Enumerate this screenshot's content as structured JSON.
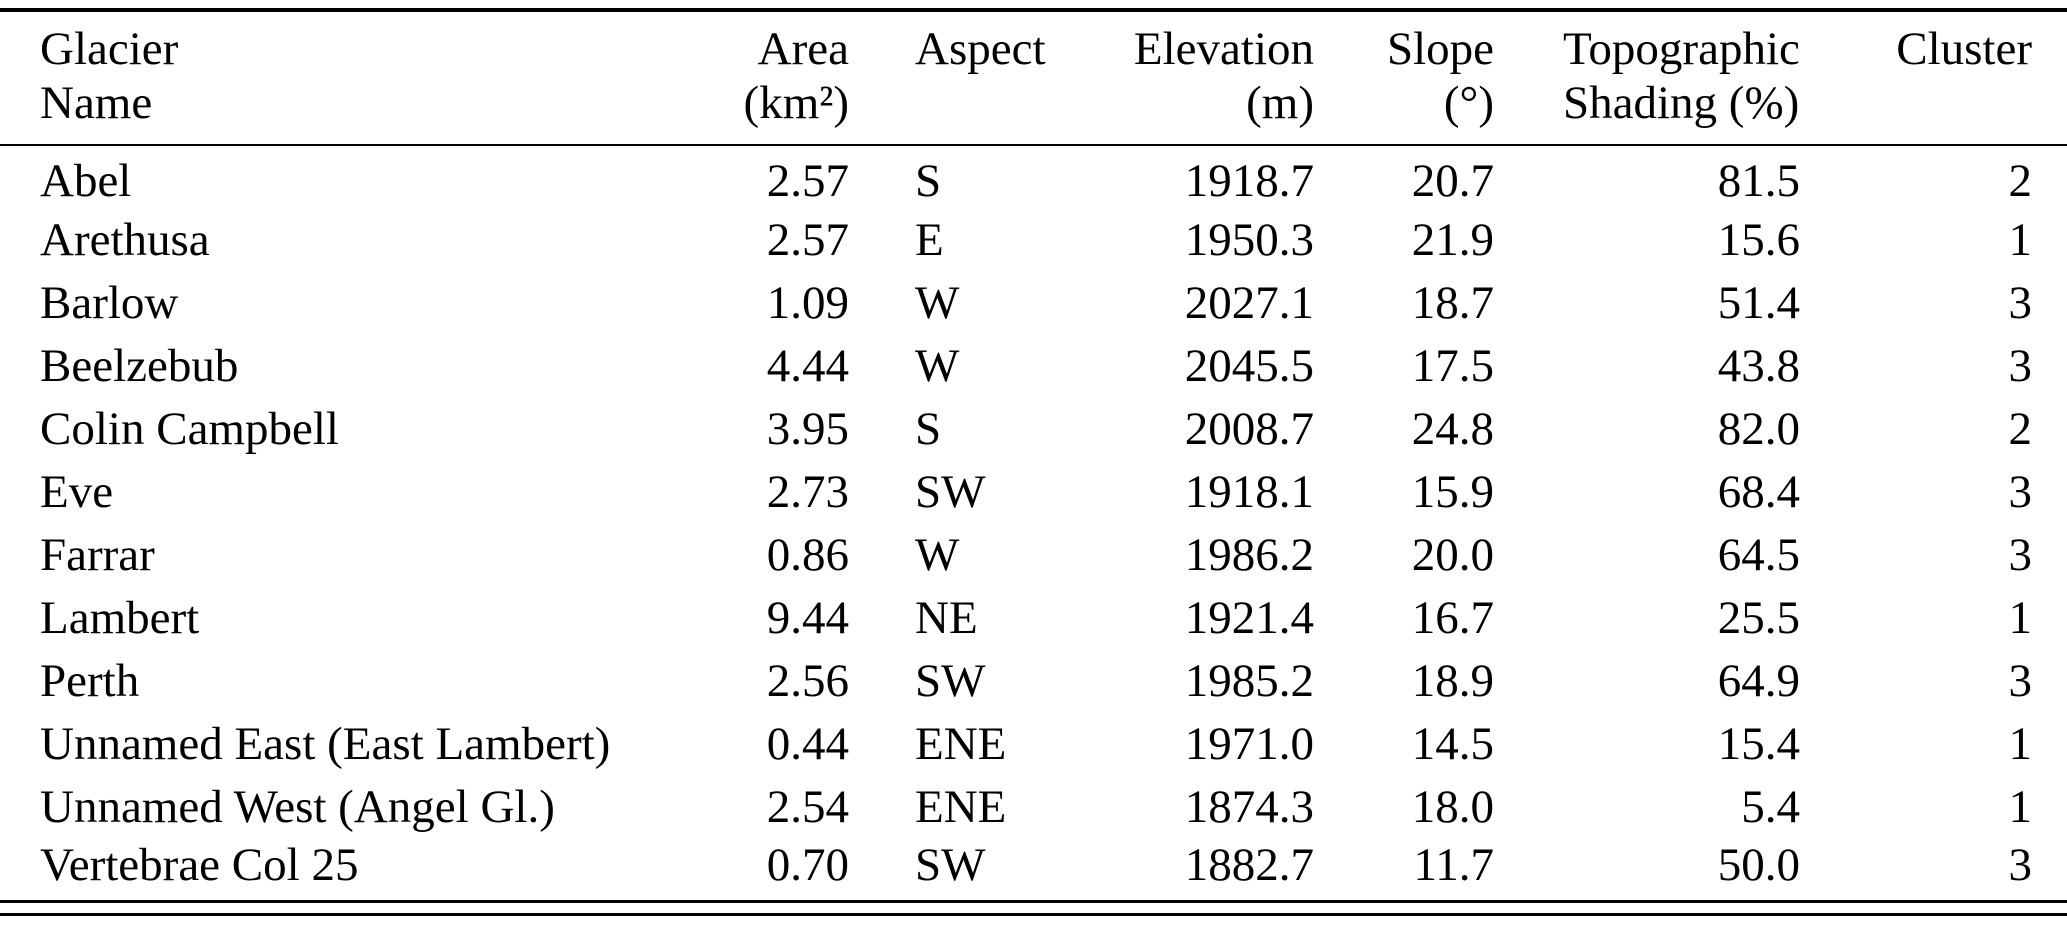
{
  "table": {
    "headers": [
      {
        "line1": "Glacier",
        "line2": "Name"
      },
      {
        "line1": "Area",
        "line2": "(km²)"
      },
      {
        "line1": "Aspect",
        "line2": ""
      },
      {
        "line1": "Elevation",
        "line2": "(m)"
      },
      {
        "line1": "Slope",
        "line2": "(°)"
      },
      {
        "line1": "Topographic",
        "line2": "Shading (%)"
      },
      {
        "line1": "Cluster",
        "line2": ""
      }
    ],
    "rows": [
      {
        "name": "Abel",
        "area": "2.57",
        "aspect": "S",
        "elevation": "1918.7",
        "slope": "20.7",
        "shading": "81.5",
        "cluster": "2"
      },
      {
        "name": "Arethusa",
        "area": "2.57",
        "aspect": "E",
        "elevation": "1950.3",
        "slope": "21.9",
        "shading": "15.6",
        "cluster": "1"
      },
      {
        "name": "Barlow",
        "area": "1.09",
        "aspect": "W",
        "elevation": "2027.1",
        "slope": "18.7",
        "shading": "51.4",
        "cluster": "3"
      },
      {
        "name": "Beelzebub",
        "area": "4.44",
        "aspect": "W",
        "elevation": "2045.5",
        "slope": "17.5",
        "shading": "43.8",
        "cluster": "3"
      },
      {
        "name": "Colin Campbell",
        "area": "3.95",
        "aspect": "S",
        "elevation": "2008.7",
        "slope": "24.8",
        "shading": "82.0",
        "cluster": "2"
      },
      {
        "name": "Eve",
        "area": "2.73",
        "aspect": "SW",
        "elevation": "1918.1",
        "slope": "15.9",
        "shading": "68.4",
        "cluster": "3"
      },
      {
        "name": "Farrar",
        "area": "0.86",
        "aspect": "W",
        "elevation": "1986.2",
        "slope": "20.0",
        "shading": "64.5",
        "cluster": "3"
      },
      {
        "name": "Lambert",
        "area": "9.44",
        "aspect": "NE",
        "elevation": "1921.4",
        "slope": "16.7",
        "shading": "25.5",
        "cluster": "1"
      },
      {
        "name": "Perth",
        "area": "2.56",
        "aspect": "SW",
        "elevation": "1985.2",
        "slope": "18.9",
        "shading": "64.9",
        "cluster": "3"
      },
      {
        "name": "Unnamed East (East Lambert)",
        "area": "0.44",
        "aspect": "ENE",
        "elevation": "1971.0",
        "slope": "14.5",
        "shading": "15.4",
        "cluster": "1"
      },
      {
        "name": "Unnamed West (Angel Gl.)",
        "area": "2.54",
        "aspect": "ENE",
        "elevation": "1874.3",
        "slope": "18.0",
        "shading": "5.4",
        "cluster": "1"
      },
      {
        "name": "Vertebrae Col 25",
        "area": "0.70",
        "aspect": "SW",
        "elevation": "1882.7",
        "slope": "11.7",
        "shading": "50.0",
        "cluster": "3"
      }
    ]
  }
}
